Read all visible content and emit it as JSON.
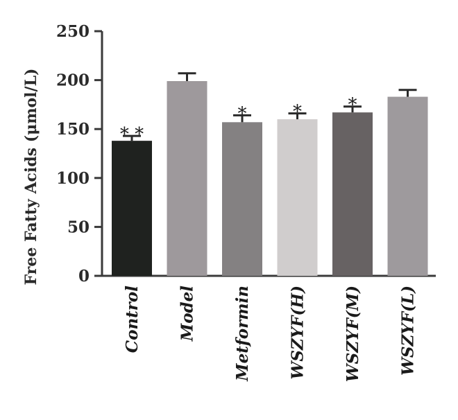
{
  "chart_data": {
    "type": "bar",
    "ylabel": "Free Fatty Acids (μmol/L)",
    "xlabel": "",
    "ylim": [
      0,
      250
    ],
    "yticks": [
      "0",
      "50",
      "100",
      "150",
      "200",
      "250"
    ],
    "categories": [
      "Control",
      "Model",
      "Metformin",
      "WSZYF(H)",
      "WSZYF(M)",
      "WSZYF(L)"
    ],
    "values": [
      138,
      199,
      157,
      160,
      167,
      183
    ],
    "errors": [
      5,
      8,
      7,
      6,
      6,
      7
    ],
    "significance": [
      "**",
      "",
      "*",
      "*",
      "*",
      ""
    ],
    "bar_colors": [
      "#1f221f",
      "#9e999c",
      "#848182",
      "#d0cdcd",
      "#676263",
      "#9e9a9d"
    ],
    "grid": false
  }
}
